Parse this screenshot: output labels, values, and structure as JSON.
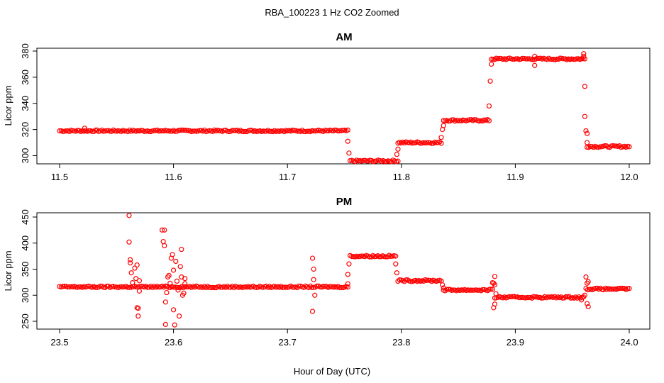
{
  "figure": {
    "title": "RBA_100223  1 Hz CO2 Zoomed",
    "xlabel": "Hour of Day (UTC)"
  },
  "colors": {
    "points": "#ff0000",
    "axes": "#000000"
  },
  "chart_data": [
    {
      "type": "scatter",
      "title": "AM",
      "xlabel": "",
      "ylabel": "Licor ppm",
      "xlim": [
        11.5,
        12.0
      ],
      "ylim": [
        293,
        382
      ],
      "xticks": [
        11.5,
        11.6,
        11.7,
        11.8,
        11.9,
        12.0
      ],
      "xtick_labels": [
        "11.5",
        "11.6",
        "11.7",
        "11.8",
        "11.9",
        "12.0"
      ],
      "yticks": [
        300,
        320,
        340,
        360,
        380
      ],
      "ytick_labels": [
        "300",
        "320",
        "340",
        "360",
        "380"
      ],
      "marker": "open-circle",
      "segments": [
        {
          "x": [
            11.5,
            11.753
          ],
          "y": 319
        },
        {
          "x": [
            11.755,
            11.797
          ],
          "y": 296
        },
        {
          "x": [
            11.797,
            11.835
          ],
          "y": 310
        },
        {
          "x": [
            11.837,
            11.877
          ],
          "y": 327
        },
        {
          "x": [
            11.879,
            11.961
          ],
          "y": 374
        },
        {
          "x": [
            11.963,
            12.0
          ],
          "y": 307
        }
      ],
      "extra_points": [
        {
          "x": 11.522,
          "y": 321
        },
        {
          "x": 11.753,
          "y": 311
        },
        {
          "x": 11.754,
          "y": 302
        },
        {
          "x": 11.796,
          "y": 301
        },
        {
          "x": 11.797,
          "y": 305
        },
        {
          "x": 11.835,
          "y": 314
        },
        {
          "x": 11.836,
          "y": 320
        },
        {
          "x": 11.837,
          "y": 323
        },
        {
          "x": 11.877,
          "y": 338
        },
        {
          "x": 11.878,
          "y": 357
        },
        {
          "x": 11.879,
          "y": 370
        },
        {
          "x": 11.917,
          "y": 376
        },
        {
          "x": 11.917,
          "y": 369
        },
        {
          "x": 11.96,
          "y": 378
        },
        {
          "x": 11.96,
          "y": 376
        },
        {
          "x": 11.961,
          "y": 353
        },
        {
          "x": 11.961,
          "y": 330
        },
        {
          "x": 11.962,
          "y": 319
        },
        {
          "x": 11.963,
          "y": 317
        },
        {
          "x": 11.963,
          "y": 310
        }
      ]
    },
    {
      "type": "scatter",
      "title": "PM",
      "xlabel": "",
      "ylabel": "Licor ppm",
      "xlim": [
        23.5,
        24.0
      ],
      "ylim": [
        235,
        460
      ],
      "xticks": [
        23.5,
        23.6,
        23.7,
        23.8,
        23.9,
        24.0
      ],
      "xtick_labels": [
        "23.5",
        "23.6",
        "23.7",
        "23.8",
        "23.9",
        "24.0"
      ],
      "yticks": [
        250,
        300,
        350,
        400,
        450
      ],
      "ytick_labels": [
        "250",
        "300",
        "350",
        "400",
        "450"
      ],
      "marker": "open-circle",
      "segments": [
        {
          "x": [
            23.5,
            23.753
          ],
          "y": 316
        },
        {
          "x": [
            23.755,
            23.795
          ],
          "y": 375
        },
        {
          "x": [
            23.797,
            23.835
          ],
          "y": 328
        },
        {
          "x": [
            23.837,
            23.88
          ],
          "y": 310
        },
        {
          "x": [
            23.882,
            23.96
          ],
          "y": 296
        },
        {
          "x": [
            23.962,
            24.0
          ],
          "y": 312
        }
      ],
      "extra_points": [
        {
          "x": 23.561,
          "y": 453
        },
        {
          "x": 23.561,
          "y": 402
        },
        {
          "x": 23.562,
          "y": 368
        },
        {
          "x": 23.562,
          "y": 362
        },
        {
          "x": 23.563,
          "y": 343
        },
        {
          "x": 23.564,
          "y": 324
        },
        {
          "x": 23.566,
          "y": 352
        },
        {
          "x": 23.567,
          "y": 332
        },
        {
          "x": 23.568,
          "y": 358
        },
        {
          "x": 23.568,
          "y": 276
        },
        {
          "x": 23.569,
          "y": 260
        },
        {
          "x": 23.569,
          "y": 275
        },
        {
          "x": 23.57,
          "y": 328
        },
        {
          "x": 23.57,
          "y": 308
        },
        {
          "x": 23.59,
          "y": 425
        },
        {
          "x": 23.591,
          "y": 403
        },
        {
          "x": 23.592,
          "y": 395
        },
        {
          "x": 23.592,
          "y": 425
        },
        {
          "x": 23.593,
          "y": 287
        },
        {
          "x": 23.593,
          "y": 244
        },
        {
          "x": 23.594,
          "y": 305
        },
        {
          "x": 23.595,
          "y": 335
        },
        {
          "x": 23.596,
          "y": 338
        },
        {
          "x": 23.597,
          "y": 323
        },
        {
          "x": 23.598,
          "y": 371
        },
        {
          "x": 23.599,
          "y": 378
        },
        {
          "x": 23.6,
          "y": 348
        },
        {
          "x": 23.6,
          "y": 272
        },
        {
          "x": 23.601,
          "y": 243
        },
        {
          "x": 23.602,
          "y": 365
        },
        {
          "x": 23.603,
          "y": 327
        },
        {
          "x": 23.604,
          "y": 310
        },
        {
          "x": 23.605,
          "y": 260
        },
        {
          "x": 23.606,
          "y": 355
        },
        {
          "x": 23.607,
          "y": 388
        },
        {
          "x": 23.607,
          "y": 335
        },
        {
          "x": 23.608,
          "y": 300
        },
        {
          "x": 23.609,
          "y": 304
        },
        {
          "x": 23.61,
          "y": 332
        },
        {
          "x": 23.61,
          "y": 322
        },
        {
          "x": 23.722,
          "y": 371
        },
        {
          "x": 23.723,
          "y": 350
        },
        {
          "x": 23.723,
          "y": 330
        },
        {
          "x": 23.724,
          "y": 300
        },
        {
          "x": 23.722,
          "y": 269
        },
        {
          "x": 23.753,
          "y": 322
        },
        {
          "x": 23.753,
          "y": 340
        },
        {
          "x": 23.754,
          "y": 360
        },
        {
          "x": 23.795,
          "y": 360
        },
        {
          "x": 23.796,
          "y": 343
        },
        {
          "x": 23.836,
          "y": 320
        },
        {
          "x": 23.837,
          "y": 314
        },
        {
          "x": 23.88,
          "y": 324
        },
        {
          "x": 23.881,
          "y": 323
        },
        {
          "x": 23.882,
          "y": 336
        },
        {
          "x": 23.882,
          "y": 320
        },
        {
          "x": 23.882,
          "y": 283
        },
        {
          "x": 23.881,
          "y": 276
        },
        {
          "x": 23.883,
          "y": 303
        },
        {
          "x": 23.958,
          "y": 291
        },
        {
          "x": 23.962,
          "y": 335
        },
        {
          "x": 23.963,
          "y": 323
        },
        {
          "x": 23.964,
          "y": 326
        },
        {
          "x": 23.963,
          "y": 284
        },
        {
          "x": 23.964,
          "y": 278
        },
        {
          "x": 23.961,
          "y": 300
        }
      ]
    }
  ]
}
